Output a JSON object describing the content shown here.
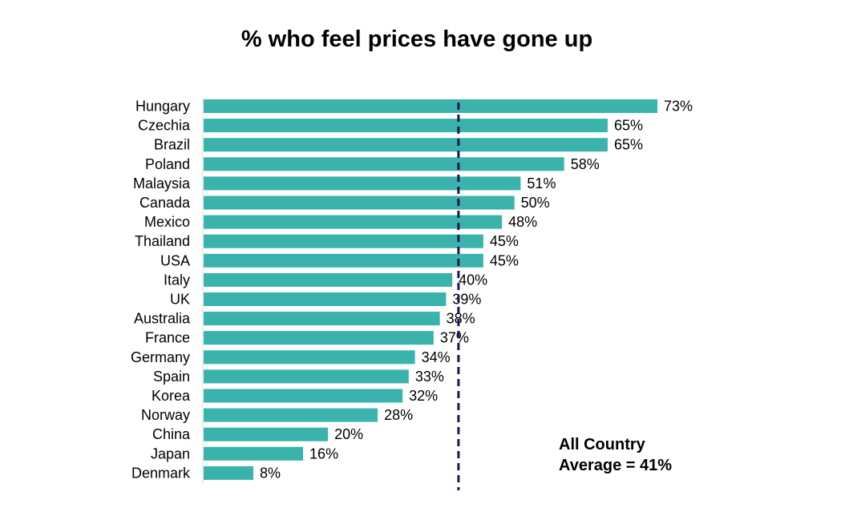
{
  "chart_data": {
    "type": "bar",
    "orientation": "horizontal",
    "title": "% who feel prices have gone up",
    "categories": [
      "Hungary",
      "Czechia",
      "Brazil",
      "Poland",
      "Malaysia",
      "Canada",
      "Mexico",
      "Thailand",
      "USA",
      "Italy",
      "UK",
      "Australia",
      "France",
      "Germany",
      "Spain",
      "Korea",
      "Norway",
      "China",
      "Japan",
      "Denmark"
    ],
    "values": [
      73,
      65,
      65,
      58,
      51,
      50,
      48,
      45,
      45,
      40,
      39,
      38,
      37,
      34,
      33,
      32,
      28,
      20,
      16,
      8
    ],
    "value_labels": [
      "73%",
      "65%",
      "65%",
      "58%",
      "51%",
      "50%",
      "48%",
      "45%",
      "45%",
      "40%",
      "39%",
      "38%",
      "37%",
      "34%",
      "33%",
      "32%",
      "28%",
      "20%",
      "16%",
      "8%"
    ],
    "xlim": [
      0,
      73
    ],
    "bar_color": "#3bb3ad",
    "average": {
      "value": 41,
      "line_color": "#1c1650",
      "label_lines": [
        "All Country",
        "Average = 41%"
      ]
    }
  }
}
